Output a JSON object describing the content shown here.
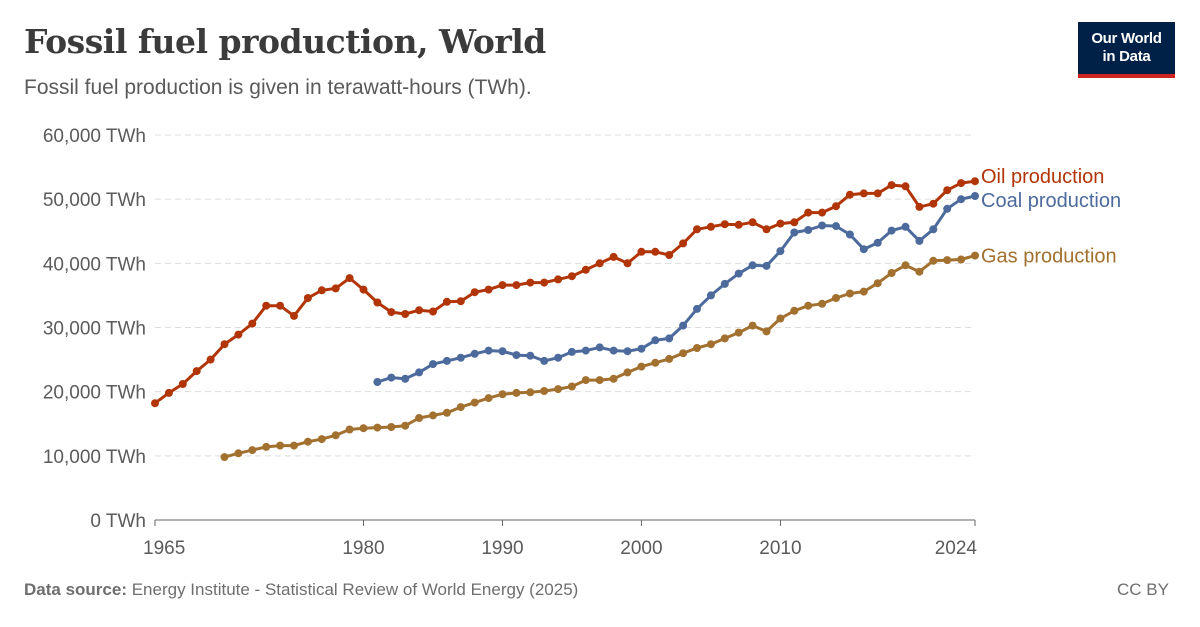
{
  "header": {
    "title": "Fossil fuel production, World",
    "subtitle": "Fossil fuel production is given in terawatt-hours (TWh).",
    "logo_line1": "Our World",
    "logo_line2": "in Data"
  },
  "footer": {
    "source_label": "Data source:",
    "source_text": "Energy Institute - Statistical Review of World Energy (2025)",
    "license": "CC BY"
  },
  "colors": {
    "oil": "#b13507",
    "coal": "#4c6a9c",
    "gas": "#a2702f",
    "grid": "#dddddd",
    "axis": "#666666"
  },
  "chart_data": {
    "type": "line",
    "title": "Fossil fuel production, World",
    "subtitle": "Fossil fuel production is given in terawatt-hours (TWh).",
    "xlim": [
      1965,
      2024
    ],
    "ylim": [
      0,
      60000
    ],
    "x_ticks": [
      1965,
      1980,
      1990,
      2000,
      2010,
      2024
    ],
    "y_ticks": [
      0,
      10000,
      20000,
      30000,
      40000,
      50000,
      60000
    ],
    "y_tick_labels": [
      "0 TWh",
      "10,000 TWh",
      "20,000 TWh",
      "30,000 TWh",
      "40,000 TWh",
      "50,000 TWh",
      "60,000 TWh"
    ],
    "grid": "horizontal dashed",
    "legend": "inline labels at right end of lines",
    "series": [
      {
        "name": "Oil production",
        "color": "#b13507",
        "start_year": 1965,
        "values": [
          18200,
          19800,
          21200,
          23200,
          25000,
          27400,
          28900,
          30600,
          33400,
          33400,
          31800,
          34600,
          35800,
          36100,
          37700,
          35900,
          33900,
          32400,
          32100,
          32700,
          32500,
          34000,
          34100,
          35500,
          35900,
          36600,
          36600,
          37000,
          37000,
          37500,
          38000,
          39000,
          40000,
          41000,
          40000,
          41800,
          41800,
          41300,
          43100,
          45300,
          45700,
          46100,
          46000,
          46400,
          45300,
          46200,
          46400,
          47900,
          47900,
          48900,
          50700,
          50900,
          50900,
          52200,
          52000,
          48800,
          49300,
          51400,
          52500,
          52800
        ]
      },
      {
        "name": "Coal production",
        "color": "#4c6a9c",
        "start_year": 1981,
        "values": [
          21500,
          22200,
          22000,
          23000,
          24300,
          24800,
          25300,
          25900,
          26400,
          26300,
          25700,
          25600,
          24800,
          25300,
          26200,
          26400,
          26900,
          26400,
          26300,
          26700,
          28000,
          28300,
          30300,
          32900,
          35000,
          36800,
          38400,
          39700,
          39600,
          41900,
          44800,
          45200,
          45900,
          45800,
          44500,
          42200,
          43200,
          45100,
          45700,
          43500,
          45300,
          48500,
          50000,
          50500
        ]
      },
      {
        "name": "Gas production",
        "color": "#a2702f",
        "start_year": 1970,
        "values": [
          9800,
          10400,
          10900,
          11400,
          11600,
          11600,
          12200,
          12600,
          13200,
          14100,
          14300,
          14400,
          14500,
          14700,
          15900,
          16300,
          16700,
          17600,
          18300,
          19000,
          19600,
          19800,
          19900,
          20100,
          20400,
          20800,
          21800,
          21800,
          22000,
          23000,
          23900,
          24500,
          25100,
          26000,
          26800,
          27400,
          28300,
          29200,
          30300,
          29400,
          31400,
          32600,
          33400,
          33700,
          34600,
          35300,
          35600,
          36900,
          38500,
          39700,
          38700,
          40400,
          40500,
          40600,
          41200
        ]
      }
    ]
  }
}
